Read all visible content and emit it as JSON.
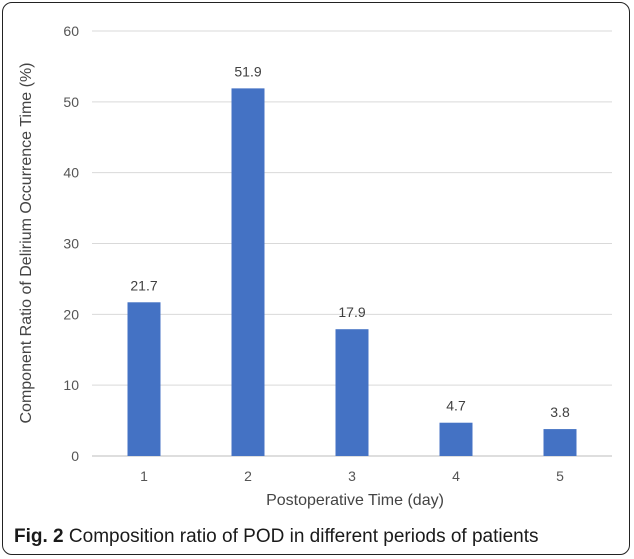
{
  "chart_data": {
    "type": "bar",
    "categories": [
      "1",
      "2",
      "3",
      "4",
      "5"
    ],
    "values": [
      21.7,
      51.9,
      17.9,
      4.7,
      3.8
    ],
    "data_labels": [
      "21.7",
      "51.9",
      "17.9",
      "4.7",
      "3.8"
    ],
    "title": "",
    "xlabel": "Postoperative Time (day)",
    "ylabel": "Component Ratio of Delirium Occurrence Time (%)",
    "ylim": [
      0,
      60
    ],
    "yticks": [
      0,
      10,
      20,
      30,
      40,
      50,
      60
    ],
    "grid": true,
    "legend": "none",
    "bar_color": "#4472C4"
  },
  "caption": {
    "label": "Fig. 2",
    "text": "Composition ratio of POD in different periods of patients"
  }
}
